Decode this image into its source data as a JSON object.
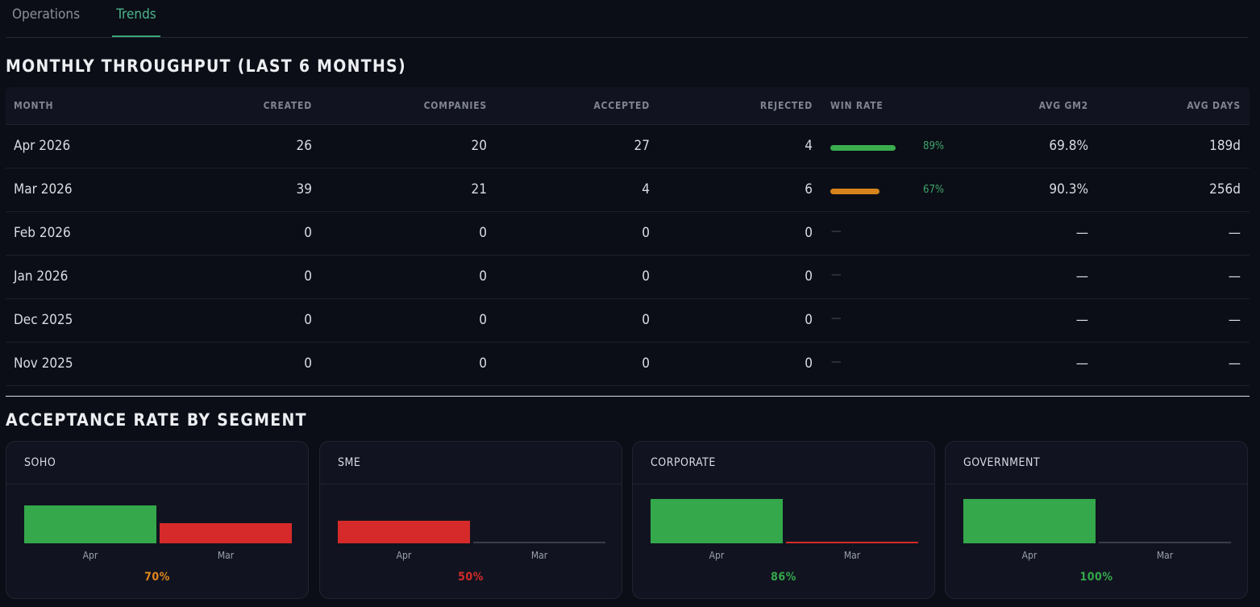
{
  "tabs": [
    {
      "label": "Operations",
      "active": false
    },
    {
      "label": "Trends",
      "active": true
    }
  ],
  "throughput": {
    "title": "MONTHLY THROUGHPUT (LAST 6 MONTHS)",
    "columns": [
      "MONTH",
      "CREATED",
      "COMPANIES",
      "ACCEPTED",
      "REJECTED",
      "WIN RATE",
      "AVG GM2",
      "AVG DAYS"
    ],
    "rows": [
      {
        "month": "Apr 2026",
        "created": "26",
        "companies": "20",
        "accepted": "27",
        "rejected": "4",
        "win_rate": "89%",
        "win_value": 0.89,
        "win_color": "#3aae4e",
        "gm2": "69.8%",
        "days": "189d"
      },
      {
        "month": "Mar 2026",
        "created": "39",
        "companies": "21",
        "accepted": "4",
        "rejected": "6",
        "win_rate": "67%",
        "win_value": 0.67,
        "win_color": "#d6841b",
        "gm2": "90.3%",
        "days": "256d"
      },
      {
        "month": "Feb 2026",
        "created": "0",
        "companies": "0",
        "accepted": "0",
        "rejected": "0",
        "win_rate": "—",
        "win_value": null,
        "gm2": "—",
        "days": "—"
      },
      {
        "month": "Jan 2026",
        "created": "0",
        "companies": "0",
        "accepted": "0",
        "rejected": "0",
        "win_rate": "—",
        "win_value": null,
        "gm2": "—",
        "days": "—"
      },
      {
        "month": "Dec 2025",
        "created": "0",
        "companies": "0",
        "accepted": "0",
        "rejected": "0",
        "win_rate": "—",
        "win_value": null,
        "gm2": "—",
        "days": "—"
      },
      {
        "month": "Nov 2025",
        "created": "0",
        "companies": "0",
        "accepted": "0",
        "rejected": "0",
        "win_rate": "—",
        "win_value": null,
        "gm2": "—",
        "days": "—"
      }
    ]
  },
  "segments": {
    "title": "ACCEPTANCE RATE BY SEGMENT",
    "cards": [
      {
        "name": "SOHO",
        "rate": "70%",
        "rate_color": "#e0861c",
        "bars": [
          {
            "label": "Apr",
            "value": 0.86,
            "color": "#34a84b"
          },
          {
            "label": "Mar",
            "value": 0.46,
            "color": "#d62a2a"
          }
        ]
      },
      {
        "name": "SME",
        "rate": "50%",
        "rate_color": "#d62a2a",
        "bars": [
          {
            "label": "Apr",
            "value": 0.5,
            "color": "#d62a2a"
          },
          {
            "label": "Mar",
            "value": 0,
            "color": "#3a3e4a"
          }
        ]
      },
      {
        "name": "CORPORATE",
        "rate": "86%",
        "rate_color": "#34a84b",
        "bars": [
          {
            "label": "Apr",
            "value": 1.0,
            "color": "#34a84b"
          },
          {
            "label": "Mar",
            "value": 0,
            "color": "#d62a2a"
          }
        ]
      },
      {
        "name": "GOVERNMENT",
        "rate": "100%",
        "rate_color": "#34a84b",
        "bars": [
          {
            "label": "Apr",
            "value": 1.0,
            "color": "#34a84b"
          },
          {
            "label": "Mar",
            "value": 0,
            "color": "#3a3e4a"
          }
        ]
      }
    ]
  },
  "colors": {
    "accent": "#3aa776",
    "background": "#0b0e16",
    "panel": "#111420"
  }
}
